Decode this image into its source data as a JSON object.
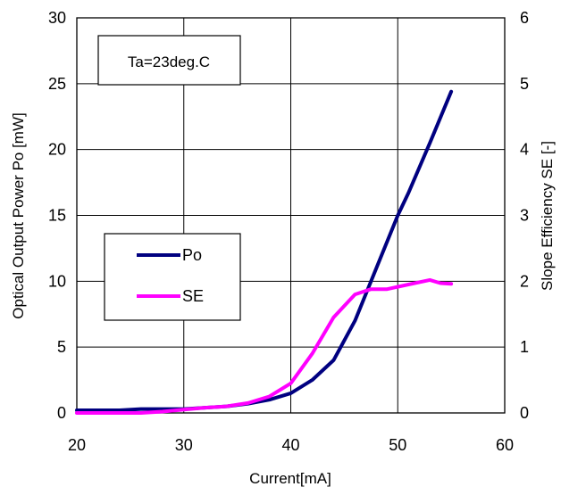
{
  "chart_data": {
    "type": "line",
    "xlabel": "Current[mA]",
    "ylabel": "Optical Output Power Po [mW]",
    "y2label": "Slope Efficiency SE [-]",
    "annotation": "Ta=23deg.C",
    "xlim": [
      20,
      60
    ],
    "ylim": [
      0,
      30
    ],
    "y2lim": [
      0,
      6
    ],
    "xticks": [
      20,
      30,
      40,
      50,
      60
    ],
    "yticks": [
      0,
      5,
      10,
      15,
      20,
      25,
      30
    ],
    "y2ticks": [
      0,
      1,
      2,
      3,
      4,
      5,
      6
    ],
    "grid": true,
    "legend_position": "middle-left",
    "series": [
      {
        "name": "Po",
        "axis": "left",
        "color": "#000080",
        "x": [
          20,
          24,
          26,
          28,
          30,
          32,
          34,
          36,
          38,
          40,
          42,
          44,
          46,
          48,
          50,
          51,
          53,
          55
        ],
        "y": [
          0.2,
          0.2,
          0.3,
          0.3,
          0.3,
          0.4,
          0.5,
          0.7,
          1.0,
          1.5,
          2.5,
          4.0,
          7.0,
          11.0,
          15.0,
          16.7,
          20.5,
          24.4
        ]
      },
      {
        "name": "SE",
        "axis": "right",
        "color": "#ff00ff",
        "x": [
          20,
          26,
          28,
          30,
          32,
          34,
          36,
          38,
          40,
          42,
          44,
          46,
          47.5,
          49,
          51,
          53,
          54,
          55
        ],
        "y": [
          0.0,
          0.0,
          0.02,
          0.05,
          0.08,
          0.1,
          0.15,
          0.25,
          0.45,
          0.9,
          1.45,
          1.8,
          1.88,
          1.88,
          1.95,
          2.02,
          1.97,
          1.96
        ]
      }
    ]
  }
}
